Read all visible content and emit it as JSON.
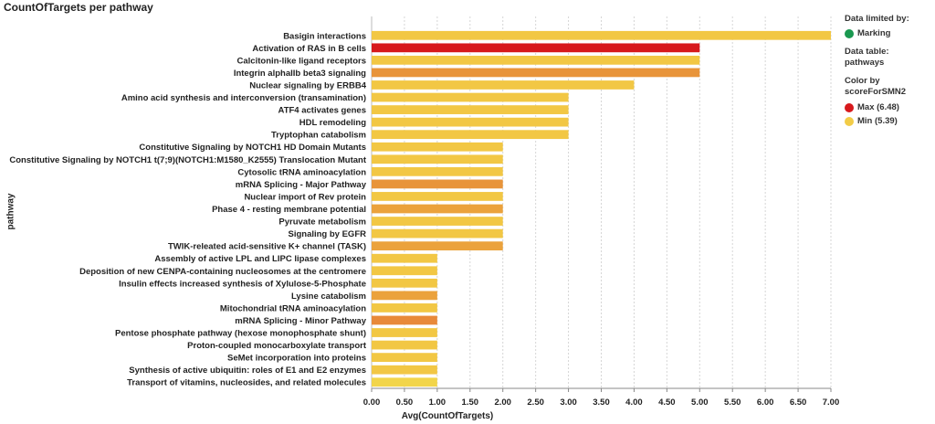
{
  "title": "CountOfTargets per pathway",
  "legend": {
    "limited_label": "Data limited by:",
    "marking_label": "Marking",
    "marking_color": "#1a9850",
    "data_table_line1": "Data table:",
    "data_table_line2": "pathways",
    "color_by_line1": "Color by",
    "color_by_line2": "scoreForSMN2",
    "max_label": "Max (6.48)",
    "max_color": "#d7191c",
    "min_label": "Min (5.39)",
    "min_color": "#f2cc47"
  },
  "chart_data": {
    "type": "bar",
    "orientation": "horizontal",
    "title": "CountOfTargets per pathway",
    "xlabel": "Avg(CountOfTargets)",
    "ylabel": "pathway",
    "xlim": [
      0,
      7.0
    ],
    "xticks": [
      "0.00",
      "0.50",
      "1.00",
      "1.50",
      "2.00",
      "2.50",
      "3.00",
      "3.50",
      "4.00",
      "4.50",
      "5.00",
      "5.50",
      "6.00",
      "6.50",
      "7.00"
    ],
    "grid": true,
    "categories": [
      "Basigin interactions",
      "Activation of RAS in B cells",
      "Calcitonin-like ligand receptors",
      "Integrin alphaIIb beta3 signaling",
      "Nuclear signaling by ERBB4",
      "Amino acid synthesis and interconversion (transamination)",
      "ATF4 activates genes",
      "HDL remodeling",
      "Tryptophan catabolism",
      "Constitutive Signaling by NOTCH1 HD Domain Mutants",
      "Constitutive Signaling by NOTCH1 t(7;9)(NOTCH1:M1580_K2555) Translocation Mutant",
      "Cytosolic tRNA aminoacylation",
      "mRNA Splicing - Major Pathway",
      "Nuclear import of Rev protein",
      "Phase 4 - resting membrane potential",
      "Pyruvate metabolism",
      "Signaling by EGFR",
      "TWIK-releated acid-sensitive K+ channel (TASK)",
      "Assembly of active LPL and LIPC lipase complexes",
      "Deposition of new CENPA-containing nucleosomes at the centromere",
      "Insulin effects increased synthesis of Xylulose-5-Phosphate",
      "Lysine catabolism",
      "Mitochondrial tRNA aminoacylation",
      "mRNA Splicing - Minor Pathway",
      "Pentose phosphate pathway (hexose monophosphate shunt)",
      "Proton-coupled monocarboxylate transport",
      "SeMet incorporation into proteins",
      "Synthesis of active ubiquitin: roles of E1 and E2 enzymes",
      "Transport of vitamins, nucleosides, and related molecules"
    ],
    "values": [
      7,
      5,
      5,
      5,
      4,
      3,
      3,
      3,
      3,
      2,
      2,
      2,
      2,
      2,
      2,
      2,
      2,
      2,
      1,
      1,
      1,
      1,
      1,
      1,
      1,
      1,
      1,
      1,
      1
    ],
    "colors": [
      "#f2c744",
      "#d7191c",
      "#f2c744",
      "#e8943a",
      "#f2c744",
      "#f2c744",
      "#f2c744",
      "#f2c744",
      "#f2c744",
      "#f2c744",
      "#f2c744",
      "#f2c744",
      "#e8943a",
      "#f2c744",
      "#eba23c",
      "#f2c744",
      "#f2c744",
      "#eba23c",
      "#f2c744",
      "#f2c744",
      "#f2c744",
      "#eba23c",
      "#f2c744",
      "#e8893a",
      "#f2c744",
      "#f2c744",
      "#f2c744",
      "#f2c744",
      "#f2d54a"
    ]
  }
}
